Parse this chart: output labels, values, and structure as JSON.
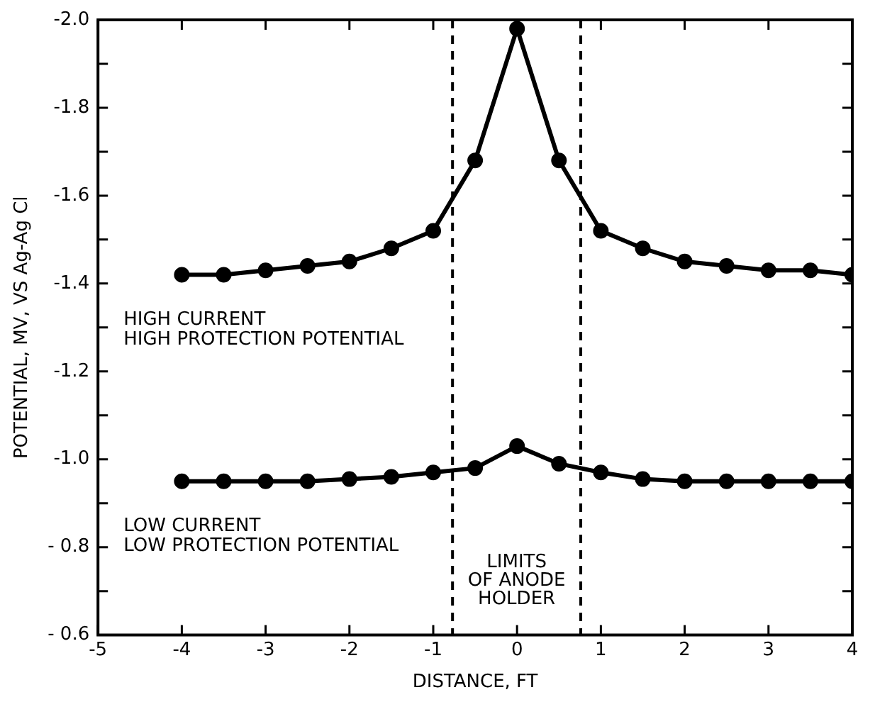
{
  "chart_data": {
    "type": "line",
    "xlabel": "DISTANCE, FT",
    "ylabel": "POTENTIAL, MV, VS Ag-Ag Cl",
    "x": [
      -4,
      -3.5,
      -3,
      -2.5,
      -2,
      -1.5,
      -1,
      -0.5,
      0,
      0.5,
      1,
      1.5,
      2,
      2.5,
      3,
      3.5,
      4
    ],
    "series": [
      {
        "name": "HIGH CURRENT\nHIGH PROTECTION POTENTIAL",
        "color": "#000000",
        "values": [
          -1.42,
          -1.42,
          -1.43,
          -1.44,
          -1.45,
          -1.48,
          -1.52,
          -1.68,
          -1.98,
          -1.68,
          -1.52,
          -1.48,
          -1.45,
          -1.44,
          -1.43,
          -1.43,
          -1.42
        ]
      },
      {
        "name": "LOW CURRENT\nLOW PROTECTION POTENTIAL",
        "color": "#000000",
        "values": [
          -0.95,
          -0.95,
          -0.95,
          -0.95,
          -0.955,
          -0.96,
          -0.97,
          -0.98,
          -1.03,
          -0.99,
          -0.97,
          -0.955,
          -0.95,
          -0.95,
          -0.95,
          -0.95,
          -0.95
        ]
      }
    ],
    "xlim": [
      -5,
      4
    ],
    "xticks": [
      -5,
      -4,
      -3,
      -2,
      -1,
      0,
      1,
      2,
      3,
      4
    ],
    "ylim": [
      -0.6,
      -2.0
    ],
    "yticks": [
      {
        "value": -2.0,
        "label": "-2.0"
      },
      {
        "value": -1.9,
        "label": null
      },
      {
        "value": -1.8,
        "label": "-1.8"
      },
      {
        "value": -1.7,
        "label": null
      },
      {
        "value": -1.6,
        "label": "-1.6"
      },
      {
        "value": -1.5,
        "label": null
      },
      {
        "value": -1.4,
        "label": "-1.4"
      },
      {
        "value": -1.3,
        "label": null
      },
      {
        "value": -1.2,
        "label": "-1.2"
      },
      {
        "value": -1.1,
        "label": null
      },
      {
        "value": -1.0,
        "label": "-1.0"
      },
      {
        "value": -0.9,
        "label": null
      },
      {
        "value": -0.8,
        "label": "- 0.8"
      },
      {
        "value": -0.7,
        "label": null
      },
      {
        "value": -0.6,
        "label": "- 0.6"
      }
    ],
    "ref_lines": [
      {
        "axis": "x",
        "value": -0.77,
        "line_style": "dashed"
      },
      {
        "axis": "x",
        "value": 0.76,
        "line_style": "dashed"
      }
    ],
    "annotations": [
      "LIMITS\nOF ANODE\nHOLDER"
    ],
    "grid": false,
    "legend": false,
    "marker": "circle",
    "line_style": "solid"
  }
}
